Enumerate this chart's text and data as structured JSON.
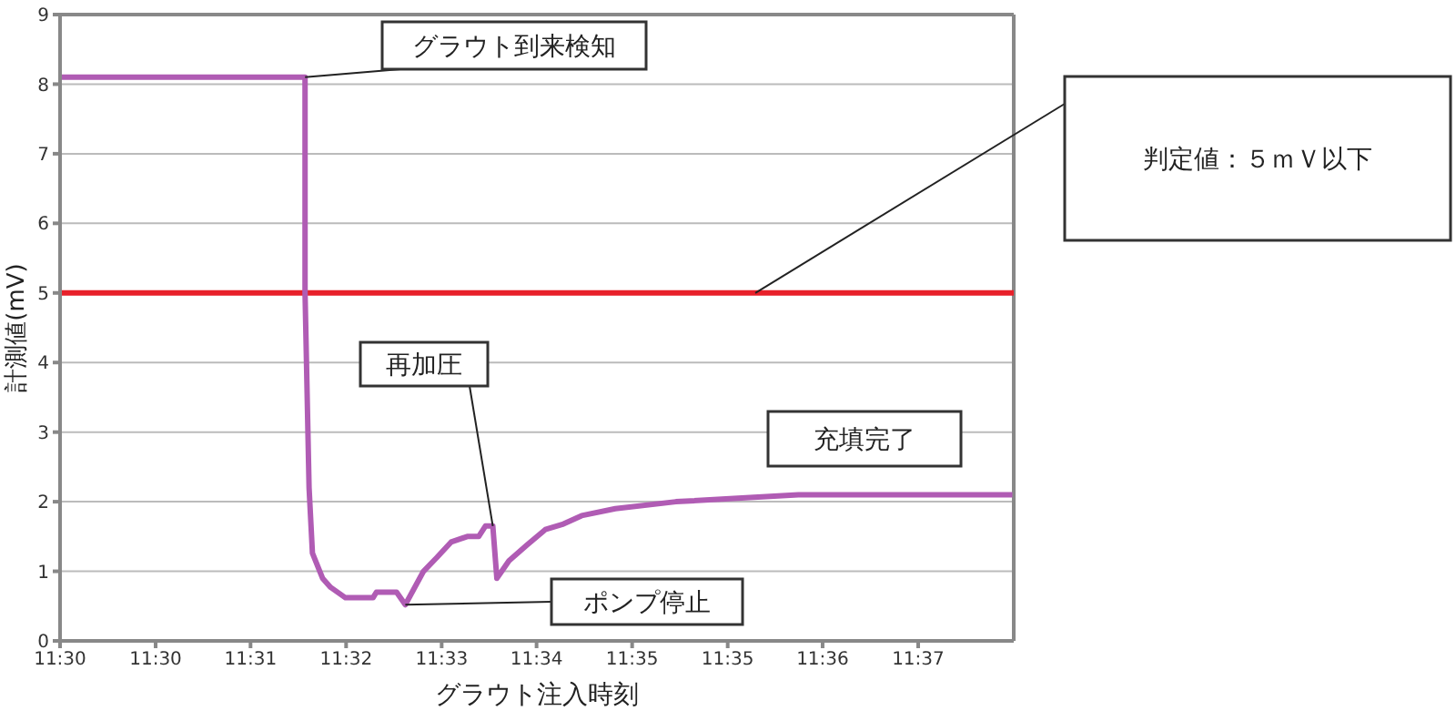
{
  "chart_data": {
    "type": "line",
    "xlabel": "グラウト注入時刻",
    "ylabel": "計測値(mV)",
    "x": [
      11.492,
      11.5284,
      11.5284,
      11.529,
      11.5295,
      11.531,
      11.5322,
      11.5344,
      11.5385,
      11.539,
      11.542,
      11.5433,
      11.546,
      11.548,
      11.5501,
      11.5525,
      11.5542,
      11.5552,
      11.5563,
      11.5569,
      11.5587,
      11.5614,
      11.5641,
      11.5668,
      11.5695,
      11.5745,
      11.5835,
      11.6017,
      11.6335
    ],
    "series": [
      {
        "color": "#b05cb4",
        "values": [
          8.1,
          8.1,
          5.0,
          2.2,
          1.26,
          0.9,
          0.77,
          0.62,
          0.62,
          0.7,
          0.7,
          0.52,
          1.0,
          1.2,
          1.42,
          1.5,
          1.5,
          1.65,
          1.65,
          0.9,
          1.15,
          1.38,
          1.6,
          1.68,
          1.8,
          1.9,
          2.0,
          2.1,
          2.1
        ]
      }
    ],
    "xlim": [
      11.492,
      11.6337
    ],
    "xticks": [
      {
        "value": 11.492,
        "label": "11:30"
      },
      {
        "value": 11.5062,
        "label": "11:30"
      },
      {
        "value": 11.5203,
        "label": "11:31"
      },
      {
        "value": 11.5345,
        "label": "11:32"
      },
      {
        "value": 11.5487,
        "label": "11:33"
      },
      {
        "value": 11.5628,
        "label": "11:34"
      },
      {
        "value": 11.577,
        "label": "11:35"
      },
      {
        "value": 11.5912,
        "label": "11:35"
      },
      {
        "value": 11.6053,
        "label": "11:36"
      },
      {
        "value": 11.6195,
        "label": "11:37"
      }
    ],
    "ylim": [
      0,
      9
    ],
    "yticks": [
      0,
      1,
      2,
      3,
      4,
      5,
      6,
      7,
      8,
      9
    ],
    "grid": "y",
    "marker": "none",
    "line_style": "solid",
    "ref_lines": [
      {
        "axis": "y",
        "value": 5,
        "color": "#e8202a"
      }
    ],
    "annotations": [
      {
        "text": "グラウト到来検知",
        "x": 11.5284,
        "y": 8.1
      },
      {
        "text": "再加圧",
        "x": 11.5563,
        "y": 1.65
      },
      {
        "text": "ポンプ停止",
        "x": 11.5433,
        "y": 0.52
      },
      "充填完了",
      "判定値：５ｍＶ以下"
    ]
  }
}
